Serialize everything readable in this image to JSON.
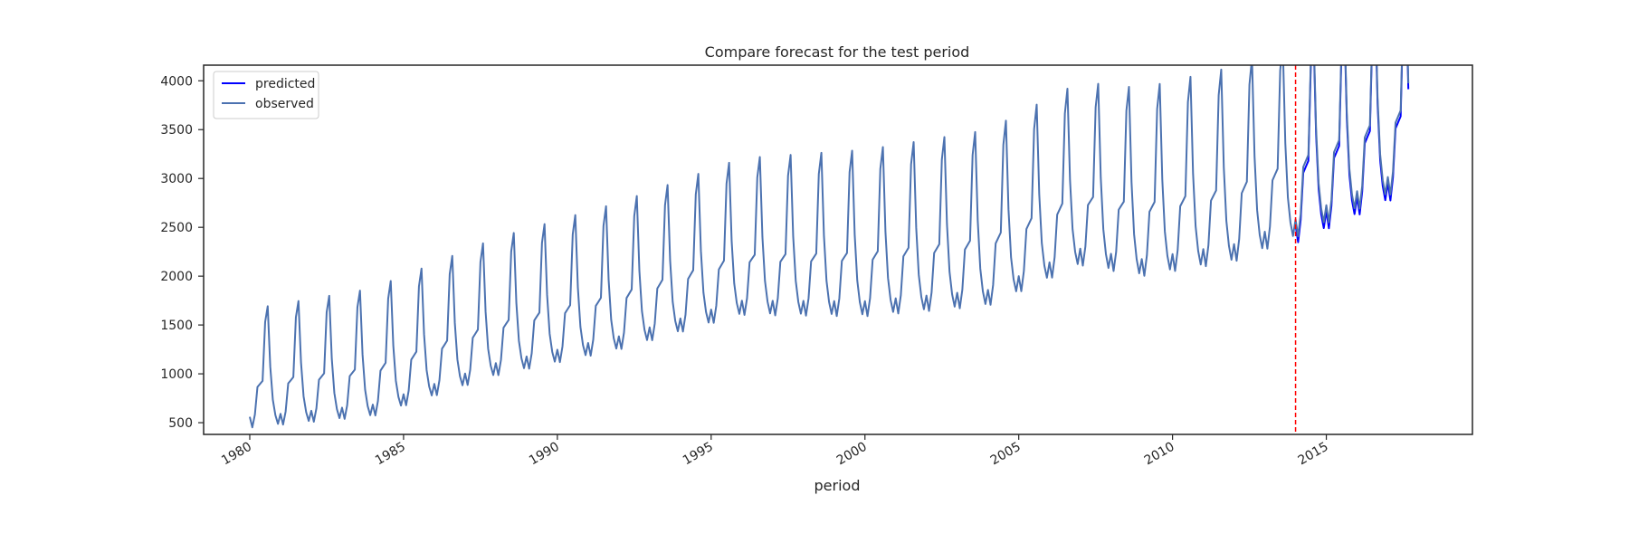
{
  "chart_data": {
    "type": "line",
    "title": "Compare forecast for the test period",
    "xlabel": "period",
    "ylabel": "",
    "x_range": [
      "1978-07",
      "2019-10"
    ],
    "ylim": [
      380,
      4160
    ],
    "x_ticks": [
      "1980",
      "1985",
      "1990",
      "1995",
      "2000",
      "2005",
      "2010",
      "2015"
    ],
    "y_ticks": [
      500,
      1000,
      1500,
      2000,
      2500,
      3000,
      3500,
      4000
    ],
    "grid": false,
    "legend_position": "top-left",
    "test_period_start": "2014-01",
    "colors": {
      "predicted": "#0000ff",
      "observed": "#4c72b0",
      "divider": "#ff0000",
      "axes": "#262626"
    },
    "legend": [
      {
        "label": "predicted",
        "color": "#0000ff"
      },
      {
        "label": "observed",
        "color": "#4c72b0"
      }
    ],
    "observed": {
      "name": "observed",
      "start": "1980-01",
      "end": "2017-09",
      "frequency": "monthly",
      "seasonal_pattern": [
        560,
        450,
        580,
        860,
        890,
        920,
        1520,
        1680,
        1060,
        720,
        560,
        470
      ],
      "seasonal_growth_per_year": 0.02,
      "trend_points": [
        [
          "1980-01",
          0
        ],
        [
          "1984-01",
          80
        ],
        [
          "1988-01",
          460
        ],
        [
          "1992-01",
          690
        ],
        [
          "1996-01",
          1010
        ],
        [
          "2000-01",
          960
        ],
        [
          "2004-01",
          1030
        ],
        [
          "2007-01",
          1420
        ],
        [
          "2009-01",
          1290
        ],
        [
          "2012-01",
          1410
        ],
        [
          "2014-01",
          1640
        ],
        [
          "2017-09",
          2130
        ]
      ]
    },
    "predicted": {
      "name": "predicted",
      "start": "2014-01",
      "end": "2017-09",
      "frequency": "monthly",
      "offset_from_observed": -60
    }
  }
}
